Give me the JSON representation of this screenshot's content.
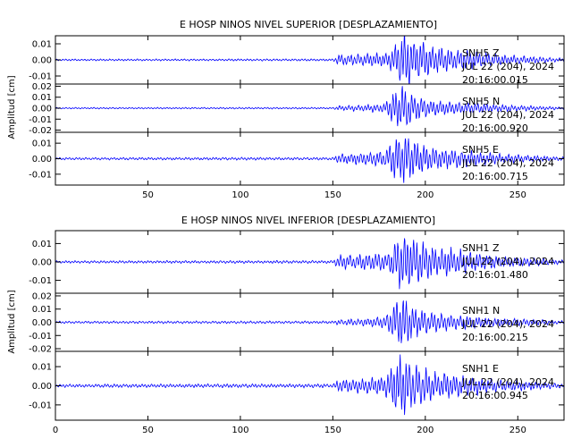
{
  "chart_data": [
    {
      "type": "line",
      "title": "E HOSP NINOS NIVEL SUPERIOR [DESPLAZAMIENTO]",
      "ylabel": "Amplitud [cm]",
      "xlim": [
        0,
        275
      ],
      "x_ticks": [
        50,
        100,
        150,
        200,
        250
      ],
      "x_tick_labels_visible": true,
      "line_color": "#0000ff",
      "panels": [
        {
          "station": "SNH5",
          "component": "Z",
          "date": "JUL 22 (204), 2024",
          "time": "20:16:00.015",
          "ylim": [
            -0.015,
            0.015
          ],
          "y_ticks": [
            "0.01",
            "0.00",
            "-0.01"
          ],
          "y_tick_values": [
            0.01,
            0.0,
            -0.01
          ],
          "trace_envelope": {
            "t": [
              0,
              150,
              153,
              165,
              180,
              186,
              190,
              195,
              205,
              220,
              240,
              275
            ],
            "amp": [
              0.0005,
              0.0006,
              0.003,
              0.0035,
              0.004,
              0.014,
              0.017,
              0.012,
              0.008,
              0.006,
              0.003,
              0.001
            ]
          }
        },
        {
          "station": "SNH5",
          "component": "N",
          "date": "JUL 22 (204), 2024",
          "time": "20:16:00.920",
          "ylim": [
            -0.022,
            0.022
          ],
          "y_ticks": [
            "0.02",
            "0.01",
            "0.00",
            "-0.01",
            "-0.02"
          ],
          "y_tick_values": [
            0.02,
            0.01,
            0.0,
            -0.01,
            -0.02
          ],
          "trace_envelope": {
            "t": [
              0,
              150,
              153,
              165,
              178,
              184,
              188,
              193,
              205,
              220,
              240,
              275
            ],
            "amp": [
              0.0006,
              0.0007,
              0.002,
              0.0025,
              0.004,
              0.016,
              0.02,
              0.012,
              0.007,
              0.005,
              0.003,
              0.001
            ]
          }
        },
        {
          "station": "SNH5",
          "component": "E",
          "date": "JUL 22 (204), 2024",
          "time": "20:16:00.715",
          "ylim": [
            -0.017,
            0.017
          ],
          "y_ticks": [
            "0.01",
            "0.00",
            "-0.01"
          ],
          "y_tick_values": [
            0.01,
            0.0,
            -0.01
          ],
          "trace_envelope": {
            "t": [
              0,
              150,
              153,
              165,
              178,
              184,
              189,
              195,
              205,
              220,
              240,
              275
            ],
            "amp": [
              0.0007,
              0.0008,
              0.003,
              0.0035,
              0.005,
              0.013,
              0.015,
              0.011,
              0.007,
              0.005,
              0.003,
              0.001
            ]
          }
        }
      ]
    },
    {
      "type": "line",
      "title": "E HOSP NINOS NIVEL INFERIOR [DESPLAZAMIENTO]",
      "ylabel": "Amplitud [cm]",
      "xlim": [
        0,
        275
      ],
      "x_ticks": [
        0,
        50,
        100,
        150,
        200,
        250
      ],
      "x_tick_labels_visible": true,
      "line_color": "#0000ff",
      "panels": [
        {
          "station": "SNH1",
          "component": "Z",
          "date": "JUL 22 (204), 2024",
          "time": "20:16:01.480",
          "ylim": [
            -0.017,
            0.017
          ],
          "y_ticks": [
            "0.01",
            "0.00",
            "-0.01"
          ],
          "y_tick_values": [
            0.01,
            0.0,
            -0.01
          ],
          "trace_envelope": {
            "t": [
              0,
              150,
              153,
              165,
              180,
              186,
              190,
              195,
              205,
              220,
              240,
              275
            ],
            "amp": [
              0.0006,
              0.0007,
              0.0035,
              0.004,
              0.005,
              0.014,
              0.017,
              0.012,
              0.008,
              0.006,
              0.003,
              0.001
            ]
          }
        },
        {
          "station": "SNH1",
          "component": "N",
          "date": "JUL 22 (204), 2024",
          "time": "20:16:00.215",
          "ylim": [
            -0.022,
            0.022
          ],
          "y_ticks": [
            "0.02",
            "0.01",
            "0.00",
            "-0.01",
            "-0.02"
          ],
          "y_tick_values": [
            0.02,
            0.01,
            0.0,
            -0.01,
            -0.02
          ],
          "trace_envelope": {
            "t": [
              0,
              150,
              153,
              165,
              178,
              184,
              188,
              193,
              205,
              220,
              240,
              275
            ],
            "amp": [
              0.0008,
              0.0009,
              0.002,
              0.0025,
              0.004,
              0.015,
              0.02,
              0.012,
              0.007,
              0.005,
              0.003,
              0.001
            ]
          }
        },
        {
          "station": "SNH1",
          "component": "E",
          "date": "JUL 22 (204), 2024",
          "time": "20:16:00.945",
          "ylim": [
            -0.018,
            0.018
          ],
          "y_ticks": [
            "0.01",
            "0.00",
            "-0.01"
          ],
          "y_tick_values": [
            0.01,
            0.0,
            -0.01
          ],
          "trace_envelope": {
            "t": [
              0,
              150,
              153,
              165,
              178,
              184,
              189,
              195,
              205,
              220,
              240,
              275
            ],
            "amp": [
              0.0008,
              0.0009,
              0.003,
              0.0035,
              0.005,
              0.013,
              0.016,
              0.011,
              0.007,
              0.005,
              0.003,
              0.001
            ]
          }
        }
      ]
    }
  ]
}
